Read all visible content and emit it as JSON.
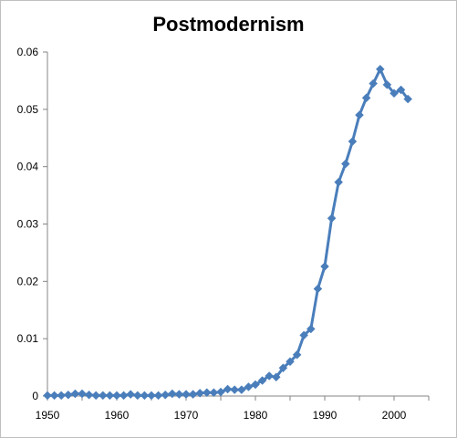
{
  "chart_data": {
    "type": "line",
    "title": "Postmodernism",
    "xlabel": "",
    "ylabel": "",
    "xlim": [
      1950,
      2005
    ],
    "ylim": [
      0,
      0.06
    ],
    "x_ticks": [
      1950,
      1960,
      1970,
      1980,
      1990,
      2000
    ],
    "y_ticks": [
      0,
      0.01,
      0.02,
      0.03,
      0.04,
      0.05,
      0.06
    ],
    "y_tick_labels": [
      "0",
      "0.01",
      "0.02",
      "0.03",
      "0.04",
      "0.05",
      "0.06"
    ],
    "x_tick_labels": [
      "1950",
      "1960",
      "1970",
      "1980",
      "1990",
      "2000"
    ],
    "grid": false,
    "legend": "none",
    "series": [
      {
        "color": "#4a7ebb",
        "marker": "diamond",
        "x": [
          1950,
          1951,
          1952,
          1953,
          1954,
          1955,
          1956,
          1957,
          1958,
          1959,
          1960,
          1961,
          1962,
          1963,
          1964,
          1965,
          1966,
          1967,
          1968,
          1969,
          1970,
          1971,
          1972,
          1973,
          1974,
          1975,
          1976,
          1977,
          1978,
          1979,
          1980,
          1981,
          1982,
          1983,
          1984,
          1985,
          1986,
          1987,
          1988,
          1989,
          1990,
          1991,
          1992,
          1993,
          1994,
          1995,
          1996,
          1997,
          1998,
          1999,
          2000,
          2001,
          2002
        ],
        "values": [
          0.0001,
          0.0001,
          0.0001,
          0.0002,
          0.0004,
          0.0004,
          0.0002,
          0.0001,
          0.0001,
          0.0001,
          0.0001,
          0.0001,
          0.0003,
          0.0001,
          0.0001,
          0.0001,
          0.0001,
          0.0002,
          0.0004,
          0.0003,
          0.0003,
          0.0003,
          0.0005,
          0.0006,
          0.0006,
          0.0007,
          0.0012,
          0.0011,
          0.0011,
          0.0016,
          0.002,
          0.0027,
          0.0035,
          0.0033,
          0.0049,
          0.006,
          0.0072,
          0.0106,
          0.0117,
          0.0187,
          0.0226,
          0.031,
          0.0373,
          0.0405,
          0.0444,
          0.049,
          0.052,
          0.0545,
          0.057,
          0.0543,
          0.0528,
          0.0534,
          0.0518
        ]
      }
    ]
  }
}
